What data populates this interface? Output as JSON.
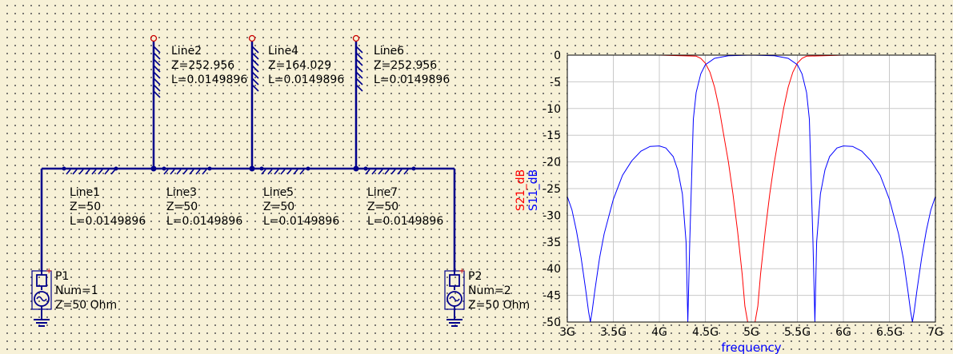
{
  "schematic": {
    "stubs": [
      {
        "name": "Line2",
        "z": "Z=252.956",
        "l": "L=0.0149896"
      },
      {
        "name": "Line4",
        "z": "Z=164.029",
        "l": "L=0.0149896"
      },
      {
        "name": "Line6",
        "z": "Z=252.956",
        "l": "L=0.0149896"
      }
    ],
    "series": [
      {
        "name": "Line1",
        "z": "Z=50",
        "l": "L=0.0149896"
      },
      {
        "name": "Line3",
        "z": "Z=50",
        "l": "L=0.0149896"
      },
      {
        "name": "Line5",
        "z": "Z=50",
        "l": "L=0.0149896"
      },
      {
        "name": "Line7",
        "z": "Z=50",
        "l": "L=0.0149896"
      }
    ],
    "ports": [
      {
        "name": "P1",
        "num": "Num=1",
        "z": "Z=50 Ohm"
      },
      {
        "name": "P2",
        "num": "Num=2",
        "z": "Z=50 Ohm"
      }
    ]
  },
  "chart_data": {
    "type": "line",
    "xlabel": "frequency",
    "ylabels": [
      "S21_dB",
      "S11_dB"
    ],
    "xlim": [
      3,
      7
    ],
    "ylim": [
      -50,
      0
    ],
    "x_ticks": [
      "3G",
      "3.5G",
      "4G",
      "4.5G",
      "5G",
      "5.5G",
      "6G",
      "6.5G",
      "7G"
    ],
    "y_ticks": [
      "0",
      "-5",
      "-10",
      "-15",
      "-20",
      "-25",
      "-30",
      "-35",
      "-40",
      "-45",
      "-50"
    ],
    "grid": true,
    "series": [
      {
        "name": "S21_dB",
        "color": "#ff0000",
        "x": [
          3.0,
          4.0,
          4.4,
          4.45,
          4.5,
          4.55,
          4.6,
          4.65,
          4.7,
          4.75,
          4.8,
          4.85,
          4.9,
          4.93,
          4.96,
          5.0,
          5.04,
          5.07,
          5.1,
          5.15,
          5.2,
          5.25,
          5.3,
          5.35,
          5.4,
          5.45,
          5.5,
          5.55,
          5.6,
          6.0,
          7.0
        ],
        "y": [
          0,
          0,
          -0.2,
          -0.6,
          -1.5,
          -3.2,
          -6,
          -10,
          -15,
          -20,
          -26,
          -33,
          -41,
          -47,
          -50,
          -50,
          -50,
          -47,
          -41,
          -33,
          -26,
          -20,
          -15,
          -10,
          -6,
          -3.2,
          -1.5,
          -0.6,
          -0.2,
          0,
          0
        ]
      },
      {
        "name": "S11_dB",
        "color": "#0000ff",
        "x": [
          3.0,
          3.05,
          3.1,
          3.15,
          3.2,
          3.23,
          3.25,
          3.27,
          3.3,
          3.35,
          3.4,
          3.5,
          3.6,
          3.7,
          3.8,
          3.9,
          4.0,
          4.07,
          4.15,
          4.2,
          4.25,
          4.29,
          4.31,
          4.33,
          4.37,
          4.4,
          4.45,
          4.5,
          4.6,
          4.75,
          5.0,
          5.25,
          5.4,
          5.5,
          5.55,
          5.6,
          5.63,
          5.67,
          5.69,
          5.71,
          5.75,
          5.8,
          5.85,
          5.93,
          6.0,
          6.1,
          6.2,
          6.3,
          6.4,
          6.5,
          6.6,
          6.65,
          6.7,
          6.73,
          6.75,
          6.77,
          6.8,
          6.85,
          6.9,
          6.95,
          7.0
        ],
        "y": [
          -26.5,
          -29,
          -33,
          -38,
          -44,
          -48,
          -50,
          -48,
          -44,
          -38,
          -33.5,
          -27,
          -22.5,
          -19.8,
          -18,
          -17.1,
          -17,
          -17.4,
          -19,
          -21.5,
          -26,
          -35,
          -50,
          -35,
          -12,
          -7,
          -3.5,
          -1.8,
          -0.6,
          -0.1,
          0,
          -0.1,
          -0.6,
          -1.8,
          -3.5,
          -7,
          -12,
          -35,
          -50,
          -35,
          -26,
          -21.5,
          -19,
          -17.4,
          -17,
          -17.1,
          -18,
          -19.8,
          -22.5,
          -27,
          -33.5,
          -38,
          -44,
          -48,
          -50,
          -48,
          -44,
          -38,
          -33,
          -29,
          -26.5
        ]
      }
    ]
  }
}
